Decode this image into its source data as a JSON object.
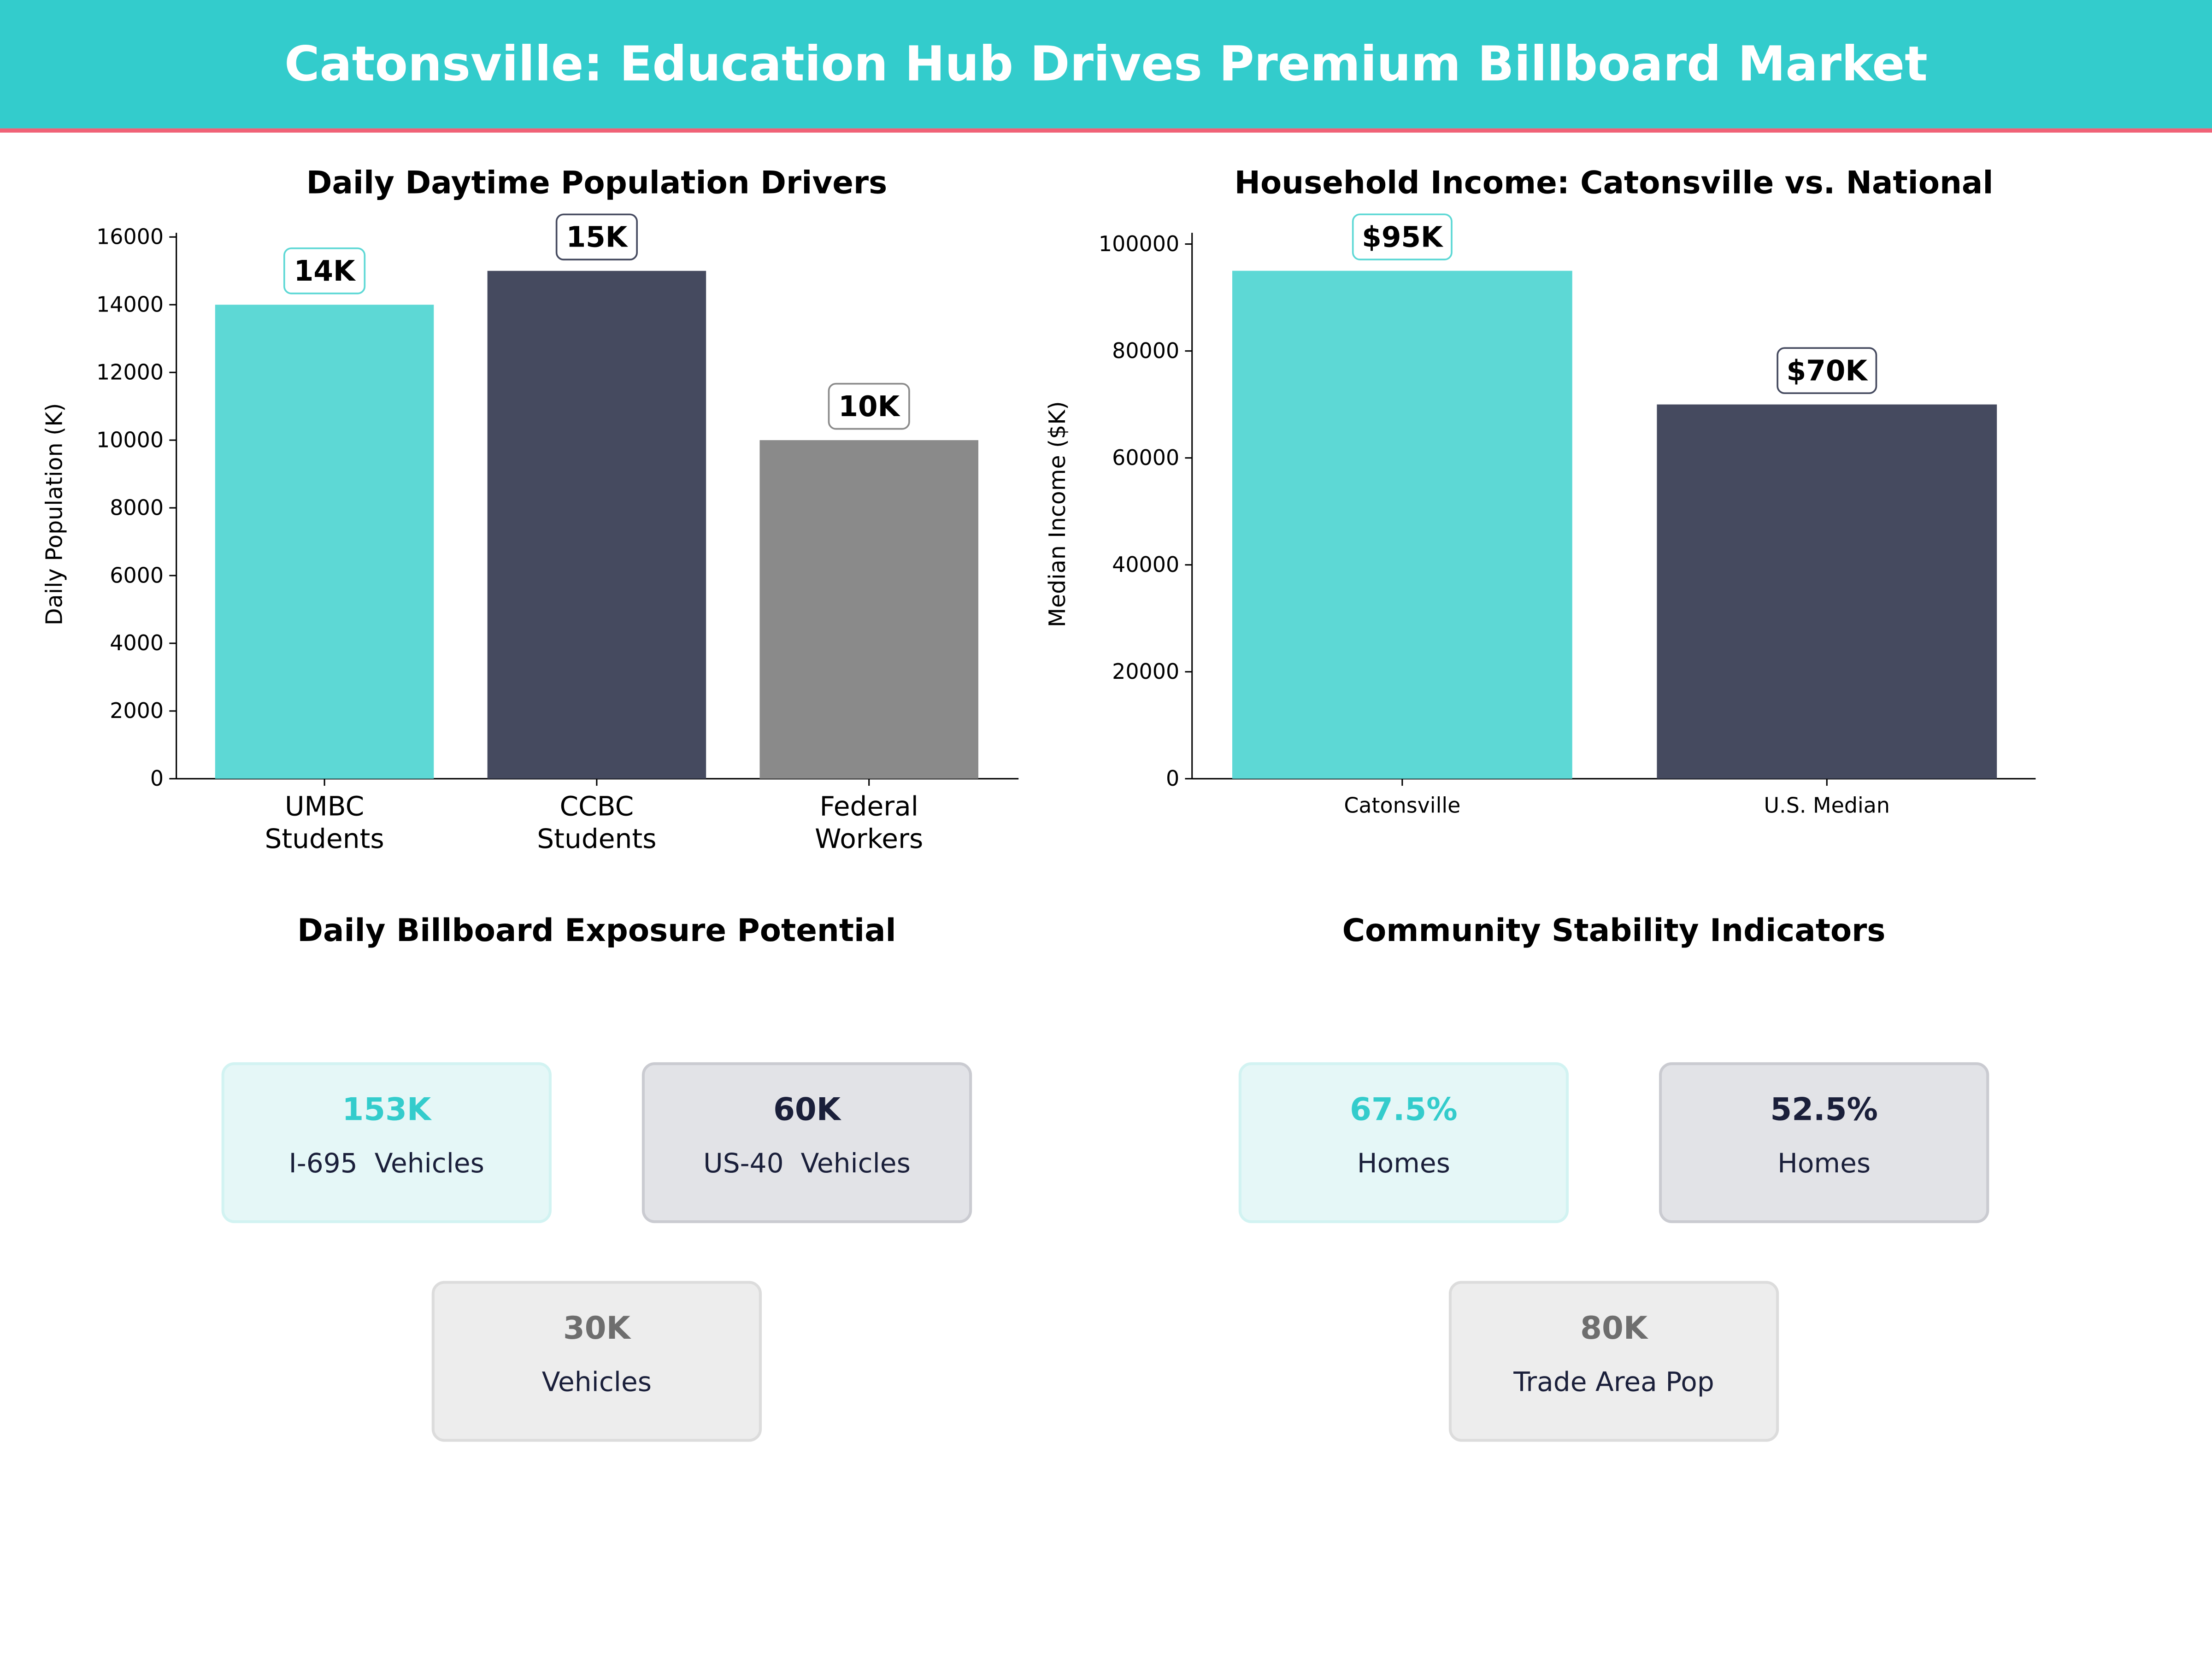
{
  "header": {
    "title": "Catonsville: Education Hub Drives Premium Billboard Market",
    "bg_color": "#33CCCC",
    "accent_line_color": "#F06277"
  },
  "chart_data": [
    {
      "type": "bar",
      "title": "Daily Daytime Population Drivers",
      "xlabel": "",
      "ylabel": "Daily Population (K)",
      "categories": [
        "UMBC\nStudents",
        "CCBC\nStudents",
        "Federal\nWorkers"
      ],
      "values": [
        14000,
        15000,
        10000
      ],
      "data_labels": [
        "14K",
        "15K",
        "10K"
      ],
      "colors": [
        "#5DD8D5",
        "#454A5F",
        "#8A8A8A"
      ],
      "ylim": [
        0,
        16000
      ],
      "yticks": [
        "0",
        "2000",
        "4000",
        "6000",
        "8000",
        "10000",
        "12000",
        "14000",
        "16000"
      ],
      "grid": false
    },
    {
      "type": "bar",
      "title": "Household Income: Catonsville vs. National",
      "xlabel": "",
      "ylabel": "Median Income ($K)",
      "categories": [
        "Catonsville",
        "U.S. Median"
      ],
      "values": [
        95000,
        70000
      ],
      "data_labels": [
        "$95K",
        "$70K"
      ],
      "colors": [
        "#5DD8D5",
        "#454A5F"
      ],
      "ylim": [
        0,
        102000
      ],
      "yticks": [
        "0",
        "20000",
        "40000",
        "60000",
        "80000",
        "100000"
      ],
      "grid": false
    }
  ],
  "exposure": {
    "title": "Daily Billboard Exposure Potential",
    "cards": [
      {
        "value": "153K",
        "label": "I-695  Vehicles",
        "theme": "teal"
      },
      {
        "value": "60K",
        "label": "US-40  Vehicles",
        "theme": "navy"
      },
      {
        "value": "30K",
        "label": "Vehicles",
        "theme": "gray"
      }
    ]
  },
  "stability": {
    "title": "Community Stability Indicators",
    "cards": [
      {
        "value": "67.5%",
        "label": "Homes",
        "theme": "teal"
      },
      {
        "value": "52.5%",
        "label": "Homes",
        "theme": "navy"
      },
      {
        "value": "80K",
        "label": "Trade Area Pop",
        "theme": "gray"
      }
    ]
  }
}
